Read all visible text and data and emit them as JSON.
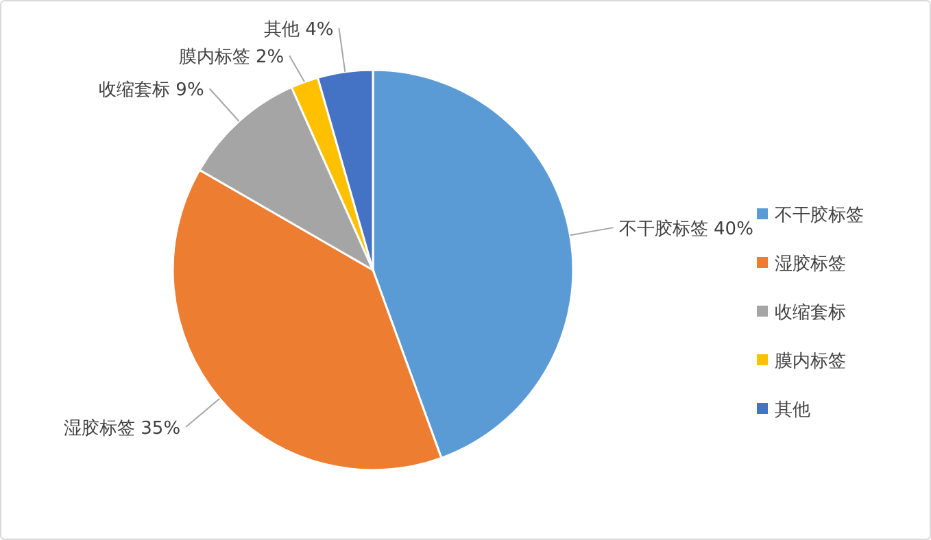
{
  "chart_data": {
    "type": "pie",
    "categories": [
      "不干胶标签",
      "湿胶标签",
      "收缩套标",
      "膜内标签",
      "其他"
    ],
    "values": [
      40,
      35,
      9,
      2,
      4
    ],
    "value_labels": [
      "40%",
      "35%",
      "9%",
      "2%",
      "4%"
    ],
    "colors": [
      "#5b9bd5",
      "#ed7d31",
      "#a5a5a5",
      "#ffc000",
      "#4472c4"
    ],
    "legend": "right"
  }
}
